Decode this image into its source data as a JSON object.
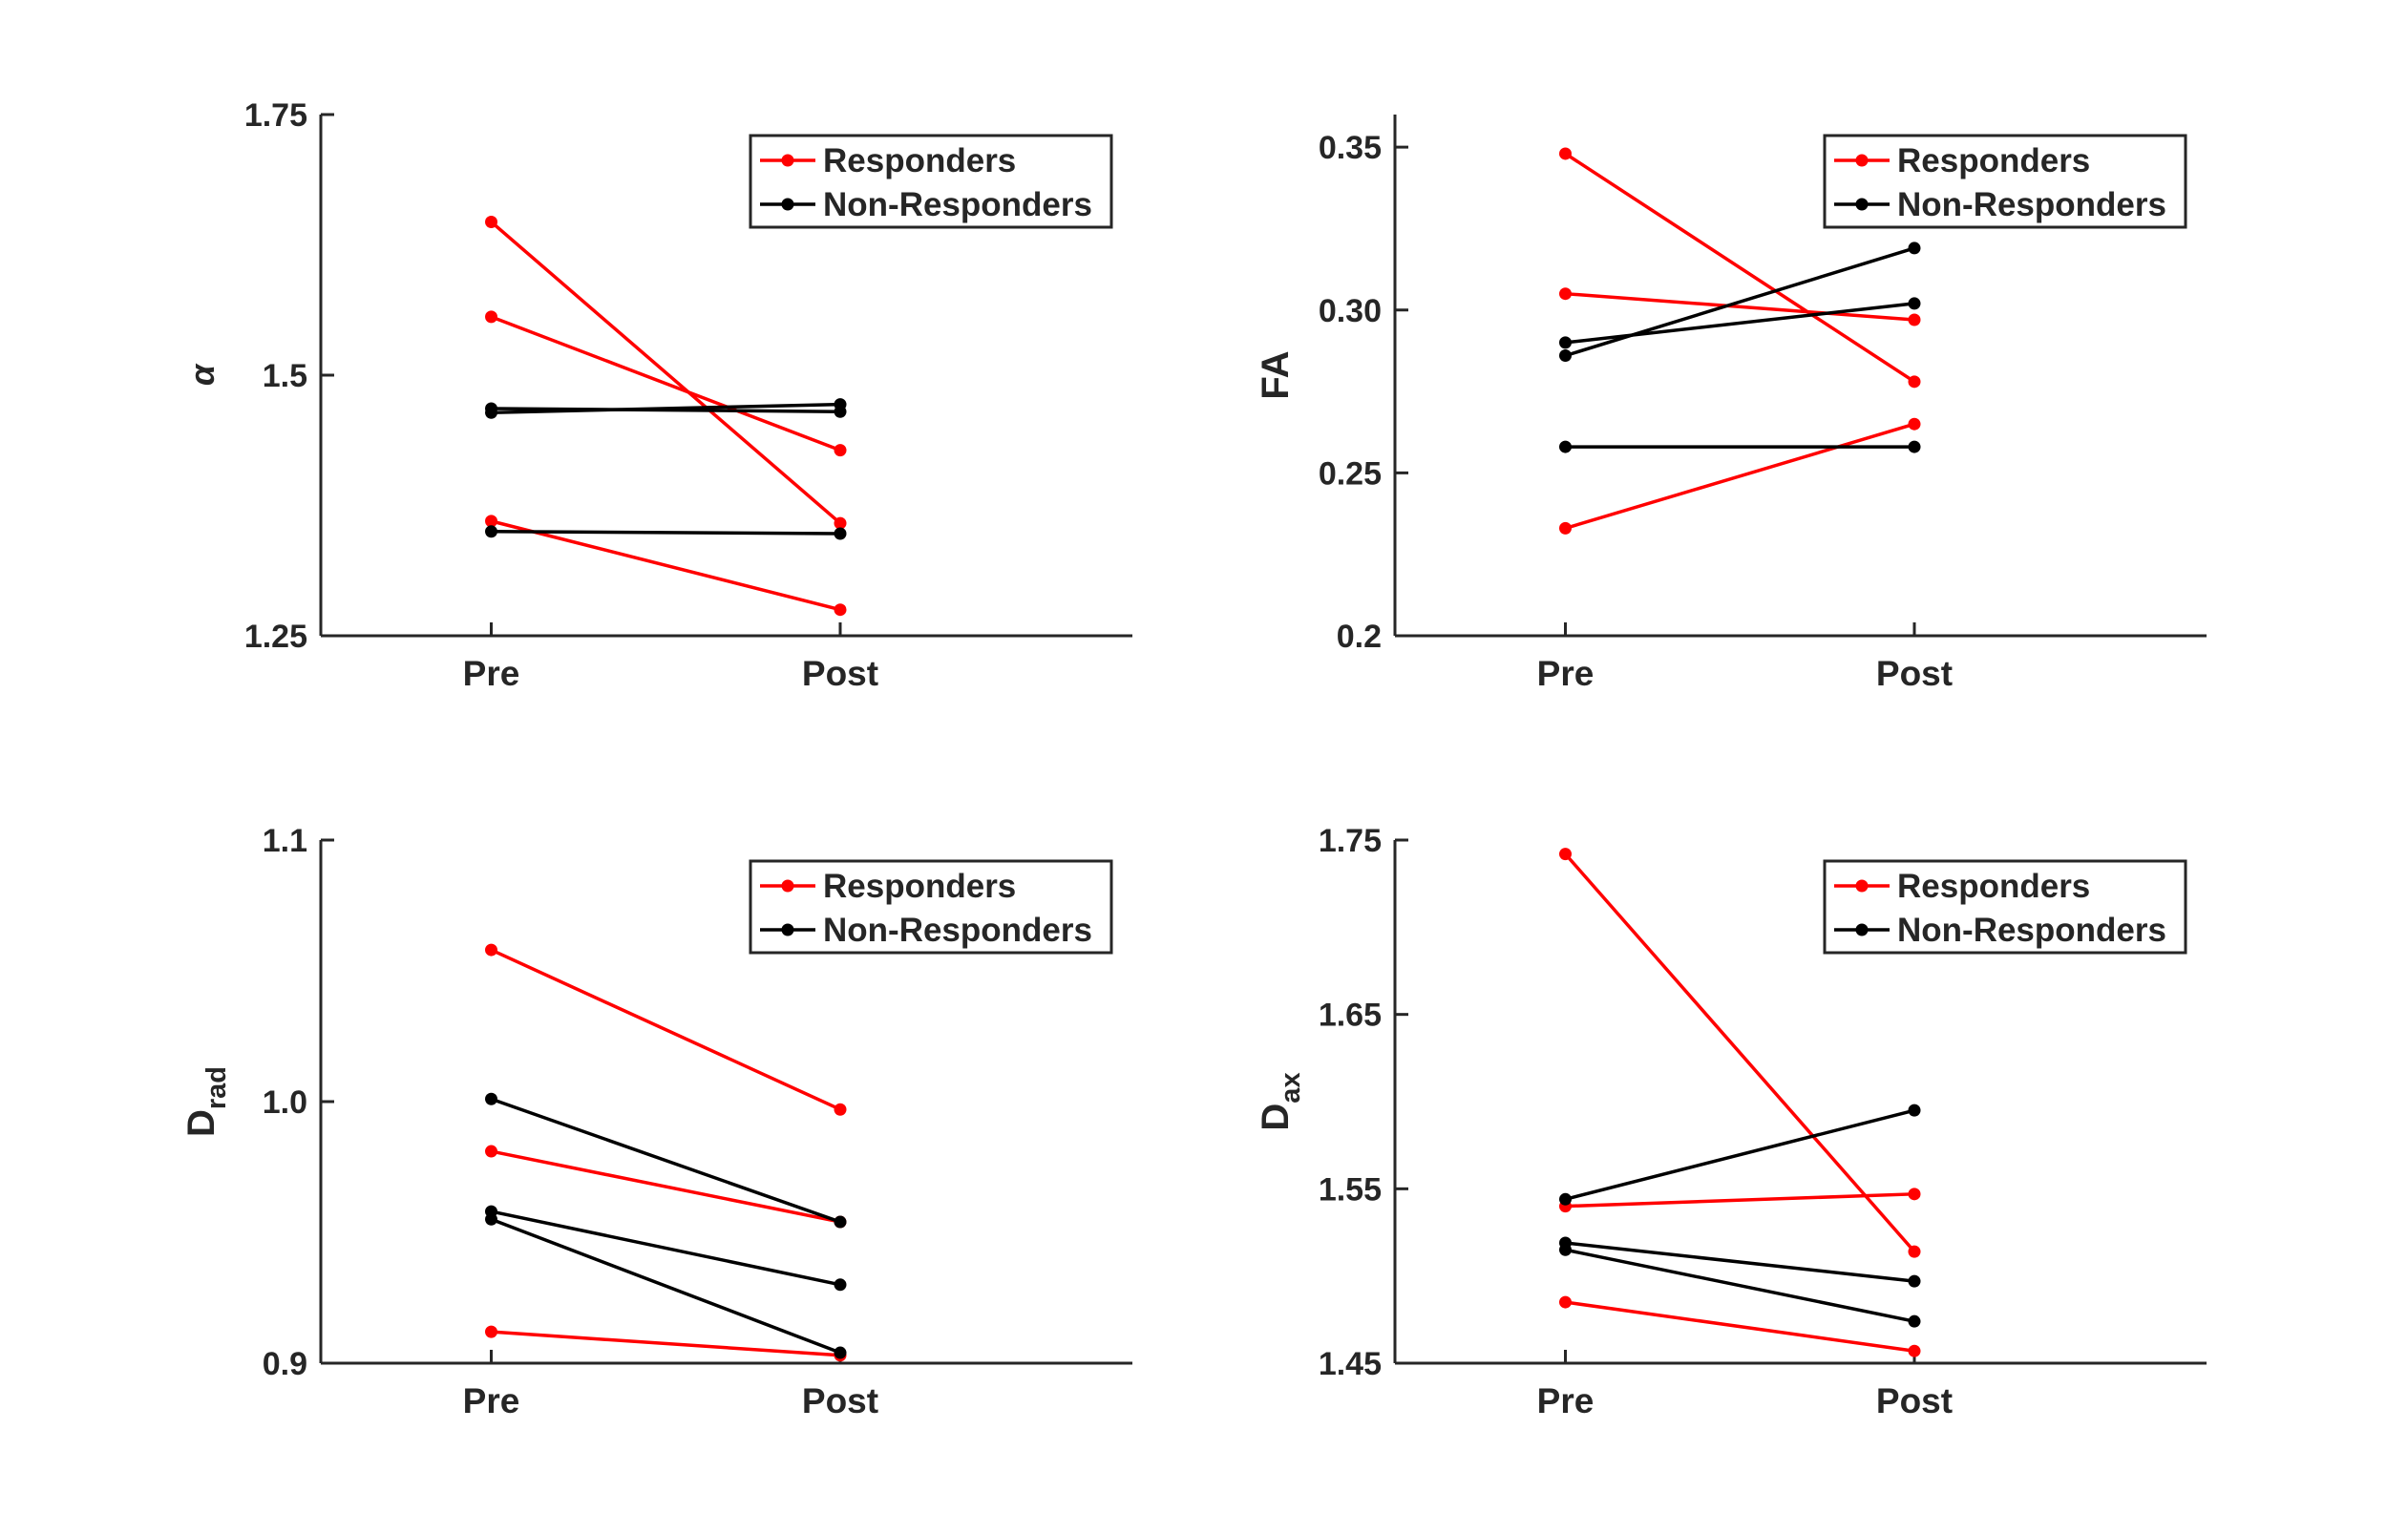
{
  "colors": {
    "responders": "#ff0000",
    "non_responders": "#000000",
    "axis": "#262626"
  },
  "legend": {
    "responders": "Responders",
    "non_responders": "Non-Responders"
  },
  "chart_data": [
    {
      "type": "line",
      "ylabel": "α",
      "categories": [
        "Pre",
        "Post"
      ],
      "ylim": [
        1.25,
        1.75
      ],
      "yticks": [
        "1.25",
        "1.5",
        "1.75"
      ],
      "legend_position": "top-right",
      "series": [
        {
          "name": "Responders",
          "group": "responders",
          "values": [
            1.647,
            1.358
          ]
        },
        {
          "name": "Responders",
          "group": "responders",
          "values": [
            1.556,
            1.428
          ]
        },
        {
          "name": "Responders",
          "group": "responders",
          "values": [
            1.36,
            1.275
          ]
        },
        {
          "name": "Non-Responders",
          "group": "non_responders",
          "values": [
            1.468,
            1.465
          ]
        },
        {
          "name": "Non-Responders",
          "group": "non_responders",
          "values": [
            1.464,
            1.472
          ]
        },
        {
          "name": "Non-Responders",
          "group": "non_responders",
          "values": [
            1.35,
            1.348
          ]
        }
      ]
    },
    {
      "type": "line",
      "ylabel": "FA",
      "categories": [
        "Pre",
        "Post"
      ],
      "ylim": [
        0.2,
        0.36
      ],
      "yticks": [
        "0.2",
        "0.25",
        "0.30",
        "0.35"
      ],
      "legend_position": "top-right",
      "series": [
        {
          "name": "Responders",
          "group": "responders",
          "values": [
            0.348,
            0.278
          ]
        },
        {
          "name": "Responders",
          "group": "responders",
          "values": [
            0.305,
            0.297
          ]
        },
        {
          "name": "Responders",
          "group": "responders",
          "values": [
            0.233,
            0.265
          ]
        },
        {
          "name": "Non-Responders",
          "group": "non_responders",
          "values": [
            0.286,
            0.319
          ]
        },
        {
          "name": "Non-Responders",
          "group": "non_responders",
          "values": [
            0.29,
            0.302
          ]
        },
        {
          "name": "Non-Responders",
          "group": "non_responders",
          "values": [
            0.258,
            0.258
          ]
        }
      ]
    },
    {
      "type": "line",
      "ylabel": "D",
      "ylabel_subscript": "rad",
      "categories": [
        "Pre",
        "Post"
      ],
      "ylim": [
        0.9,
        1.1
      ],
      "yticks": [
        "0.9",
        "1.0",
        "1.1"
      ],
      "legend_position": "top-right",
      "series": [
        {
          "name": "Responders",
          "group": "responders",
          "values": [
            1.058,
            0.997
          ]
        },
        {
          "name": "Responders",
          "group": "responders",
          "values": [
            0.981,
            0.954
          ]
        },
        {
          "name": "Responders",
          "group": "responders",
          "values": [
            0.912,
            0.903
          ]
        },
        {
          "name": "Non-Responders",
          "group": "non_responders",
          "values": [
            1.001,
            0.954
          ]
        },
        {
          "name": "Non-Responders",
          "group": "non_responders",
          "values": [
            0.958,
            0.93
          ]
        },
        {
          "name": "Non-Responders",
          "group": "non_responders",
          "values": [
            0.955,
            0.904
          ]
        }
      ]
    },
    {
      "type": "line",
      "ylabel": "D",
      "ylabel_subscript": "ax",
      "categories": [
        "Pre",
        "Post"
      ],
      "ylim": [
        1.45,
        1.75
      ],
      "yticks": [
        "1.45",
        "1.55",
        "1.65",
        "1.75"
      ],
      "legend_position": "top-right",
      "series": [
        {
          "name": "Responders",
          "group": "responders",
          "values": [
            1.742,
            1.514
          ]
        },
        {
          "name": "Responders",
          "group": "responders",
          "values": [
            1.54,
            1.547
          ]
        },
        {
          "name": "Responders",
          "group": "responders",
          "values": [
            1.485,
            1.457
          ]
        },
        {
          "name": "Non-Responders",
          "group": "non_responders",
          "values": [
            1.544,
            1.595
          ]
        },
        {
          "name": "Non-Responders",
          "group": "non_responders",
          "values": [
            1.519,
            1.497
          ]
        },
        {
          "name": "Non-Responders",
          "group": "non_responders",
          "values": [
            1.515,
            1.474
          ]
        }
      ]
    }
  ]
}
